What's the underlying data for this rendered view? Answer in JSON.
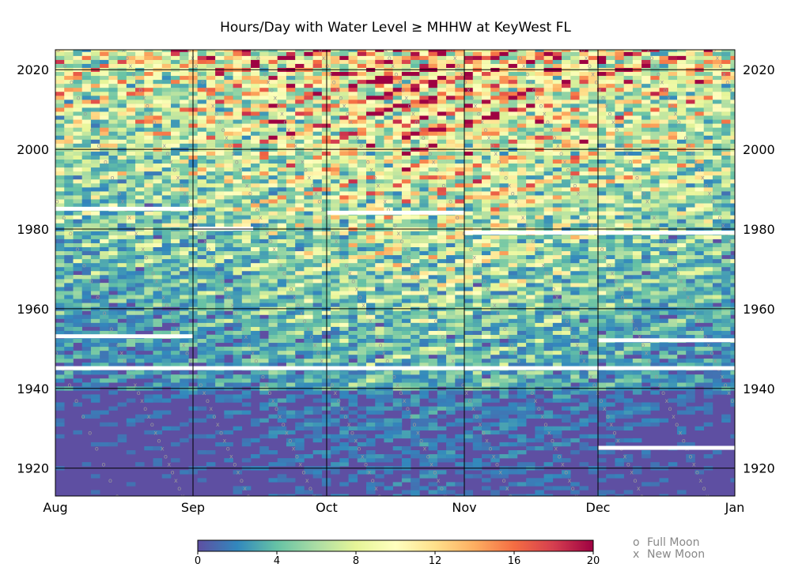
{
  "chart_data": {
    "type": "heatmap",
    "title": "Hours/Day with Water Level ≥ MHHW at KeyWest FL",
    "x_tick_labels": [
      "Aug",
      "Sep",
      "Oct",
      "Nov",
      "Dec",
      "Jan"
    ],
    "y_tick_labels": [
      "1920",
      "1940",
      "1960",
      "1980",
      "2000",
      "2020"
    ],
    "year_range": [
      1913,
      2025
    ],
    "colorbar": {
      "min": 0,
      "max": 20,
      "tick_labels": [
        "0",
        "4",
        "8",
        "12",
        "16",
        "20"
      ],
      "colormap": "Spectral_r"
    },
    "legend": {
      "placement": "bottom-right",
      "entries": [
        {
          "marker": "o",
          "label": "Full Moon"
        },
        {
          "marker": "x",
          "label": "New Moon"
        }
      ]
    },
    "grid": true,
    "colors": {
      "background_min": "#5e4fa2",
      "max": "#9e0142",
      "marker": "#999999",
      "missing": "#ffffff"
    },
    "missing_data_segments": [
      {
        "year": 1925,
        "from_month": "Dec",
        "to_month": "Jan",
        "label": "Dec-Jan 1925"
      },
      {
        "year": 1945,
        "from_month": "Aug",
        "to_month": "Jan",
        "label": "1945 full season"
      },
      {
        "year": 1953,
        "from_month": "Aug",
        "to_month": "Sep",
        "label": "Aug 1953"
      },
      {
        "year": 1952,
        "from_month": "Dec",
        "to_month": "Jan",
        "label": "late Dec 1952"
      },
      {
        "year": 1985,
        "from_month": "Aug",
        "to_month": "Sep",
        "label": "Aug 1985"
      },
      {
        "year": 1980,
        "from_month": "Sep",
        "to_month": "Sep",
        "label": "Sep 1980"
      },
      {
        "year": 1984,
        "from_month": "Oct",
        "to_month": "Nov",
        "label": "Oct 1984"
      },
      {
        "year": 1979,
        "from_month": "Nov",
        "to_month": "Jan",
        "label": "Nov-Dec 1979"
      }
    ]
  }
}
